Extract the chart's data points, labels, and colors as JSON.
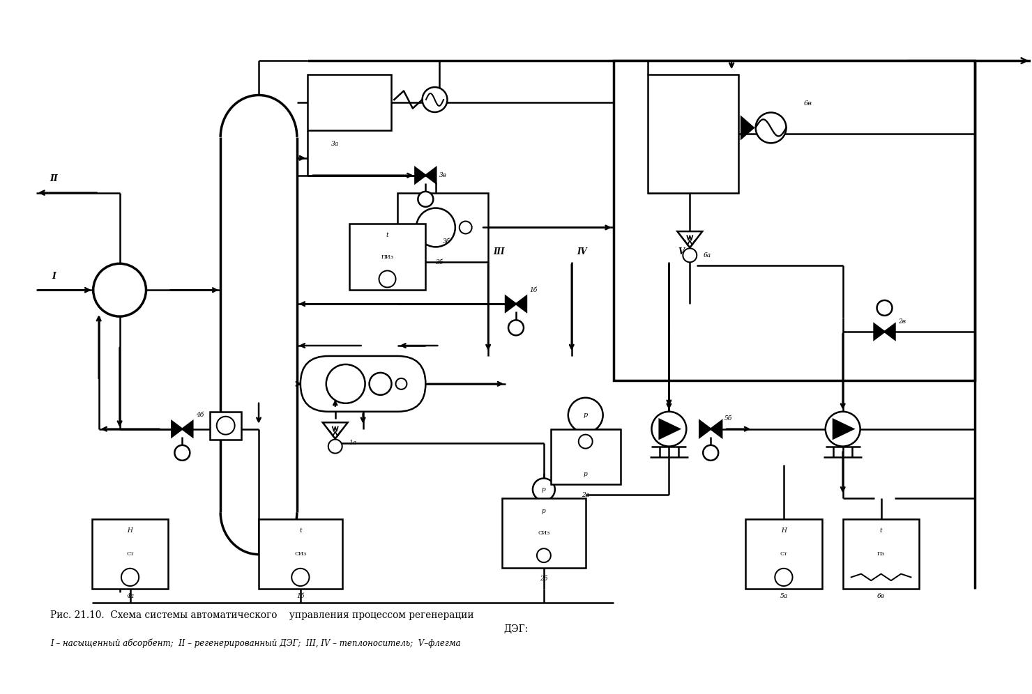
{
  "title": "Рис. 21.10.  Схема системы автоматического  управления процессом регенерации",
  "title2": "                                       ДЭГ:",
  "legend": "I – насыщенный абсорбент;  II – регенерированный ДЭГ;  III, IV – теплоноситель;  V–флегма",
  "bg": "#ffffff",
  "lw": 1.8,
  "lw2": 2.5
}
